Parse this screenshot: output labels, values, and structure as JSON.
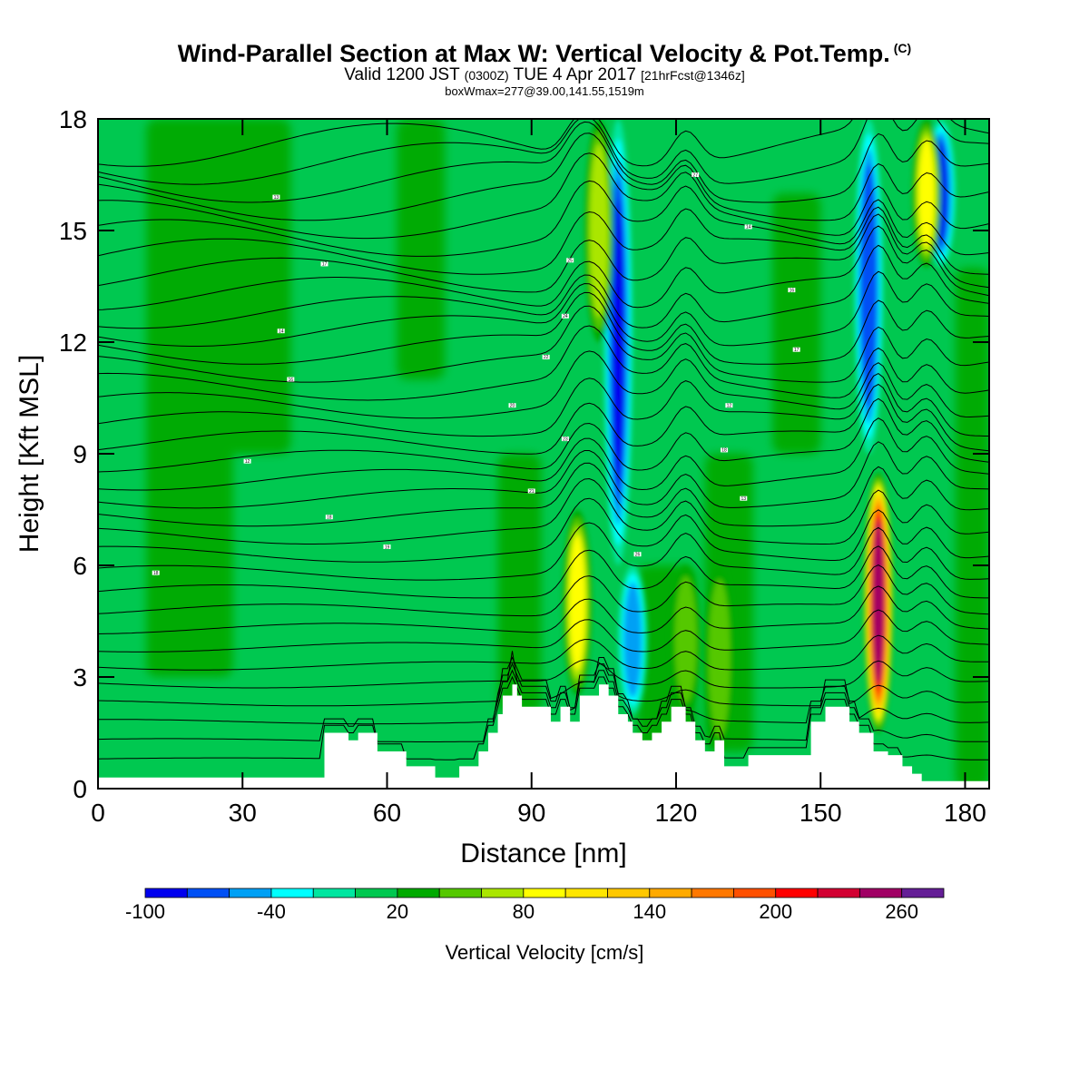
{
  "header": {
    "title": "Wind-Parallel Section at Max W: Vertical Velocity & Pot.Temp.",
    "copyright": "(C)",
    "valid_prefix": "Valid 1200 JST",
    "valid_zulu": "(0300Z)",
    "valid_date": "TUE 4 Apr 2017",
    "forecast": "[21hrFcst@1346z]",
    "boxwmax": "boxWmax=277@39.00,141.55,1519m"
  },
  "chart_data": {
    "type": "heatmap",
    "title": "Wind-Parallel Section at Max W: Vertical Velocity & Pot.Temp.",
    "xlabel": "Distance [nm]",
    "ylabel": "Height [Kft MSL]",
    "xlim": [
      0,
      185
    ],
    "ylim": [
      0,
      18
    ],
    "xticks": [
      "0",
      "30",
      "60",
      "90",
      "120",
      "150",
      "180"
    ],
    "xtick_values": [
      0,
      30,
      60,
      90,
      120,
      150,
      180
    ],
    "yticks": [
      "0",
      "3",
      "6",
      "9",
      "12",
      "15",
      "18"
    ],
    "ytick_values": [
      0,
      3,
      6,
      9,
      12,
      15,
      18
    ],
    "background_value": 10,
    "colorbar": {
      "title": "Vertical Velocity [cm/s]",
      "tick_labels": [
        "-100",
        "-40",
        "20",
        "80",
        "140",
        "200",
        "260"
      ],
      "tick_values": [
        -100,
        -40,
        20,
        80,
        140,
        200,
        260
      ],
      "levels": [
        -100,
        -80,
        -60,
        -40,
        -20,
        0,
        20,
        40,
        60,
        80,
        100,
        120,
        140,
        160,
        180,
        200,
        220,
        240,
        260,
        280
      ],
      "colors": [
        "#0000ee",
        "#0050f5",
        "#00a0f5",
        "#00ffff",
        "#00e6a0",
        "#00c850",
        "#00aa00",
        "#55c800",
        "#aae600",
        "#ffff00",
        "#ffe600",
        "#ffc800",
        "#ffaa00",
        "#ff7800",
        "#ff5000",
        "#ff0000",
        "#d20032",
        "#a00064",
        "#641e96"
      ]
    },
    "features": [
      {
        "label": "updraft",
        "x": 99.5,
        "y_from": 2.5,
        "y_to": 7.5,
        "peak": 90
      },
      {
        "label": "updraft",
        "x": 162,
        "y_from": 1.5,
        "y_to": 8.5,
        "peak": 240
      },
      {
        "label": "downdraft",
        "x": 108,
        "y_from": 6,
        "y_to": 18,
        "peak": -95
      },
      {
        "label": "downdraft",
        "x": 160,
        "y_from": 9,
        "y_to": 18,
        "peak": -80
      },
      {
        "label": "downdraft",
        "x": 175,
        "y_from": 14,
        "y_to": 18,
        "peak": -90
      },
      {
        "label": "updraft",
        "x": 104,
        "y_from": 12,
        "y_to": 18,
        "peak": 75
      },
      {
        "label": "updraft",
        "x": 172,
        "y_from": 14,
        "y_to": 18,
        "peak": 80
      },
      {
        "label": "downdraft",
        "x": 111,
        "y_from": 2,
        "y_to": 6,
        "peak": -60
      },
      {
        "label": "updraft",
        "x": 122,
        "y_from": 2,
        "y_to": 6,
        "peak": 50
      },
      {
        "label": "updraft",
        "x": 129,
        "y_from": 1,
        "y_to": 6,
        "peak": 40
      }
    ],
    "terrain": {
      "x": [
        0,
        45,
        47,
        51,
        52,
        54,
        57,
        58,
        63,
        64,
        67,
        70,
        71,
        75,
        76,
        79,
        81,
        83,
        84,
        86,
        87,
        88,
        92,
        94,
        96,
        98,
        100,
        104,
        106,
        108,
        110,
        111,
        113,
        115,
        117,
        119,
        122,
        124,
        126,
        128,
        130,
        133,
        135,
        140,
        145,
        148,
        151,
        153,
        156,
        158,
        161,
        164,
        167,
        169,
        171,
        185
      ],
      "heights": [
        0.3,
        0.3,
        1.5,
        1.5,
        1.3,
        1.5,
        1.5,
        1.0,
        1.0,
        0.6,
        0.6,
        0.3,
        0.3,
        0.6,
        0.6,
        1.0,
        1.5,
        2.0,
        2.5,
        2.8,
        2.5,
        2.2,
        2.2,
        1.8,
        2.2,
        1.8,
        2.5,
        2.8,
        2.5,
        2.0,
        1.8,
        1.5,
        1.3,
        1.5,
        1.8,
        2.2,
        1.8,
        1.3,
        1.0,
        1.3,
        0.6,
        0.6,
        0.9,
        0.9,
        0.9,
        1.8,
        2.2,
        2.2,
        1.8,
        1.5,
        1.0,
        0.9,
        0.6,
        0.4,
        0.2,
        0.2
      ]
    },
    "theta_contours": {
      "count": 34,
      "bottom_height": 0.8,
      "spacing": 0.5,
      "labels": [
        "18",
        "12",
        "13",
        "14",
        "16",
        "17",
        "18",
        "19",
        "20",
        "21",
        "22",
        "23",
        "24",
        "25",
        "26",
        "27"
      ]
    }
  },
  "icons": [
    "copyright-mark"
  ]
}
